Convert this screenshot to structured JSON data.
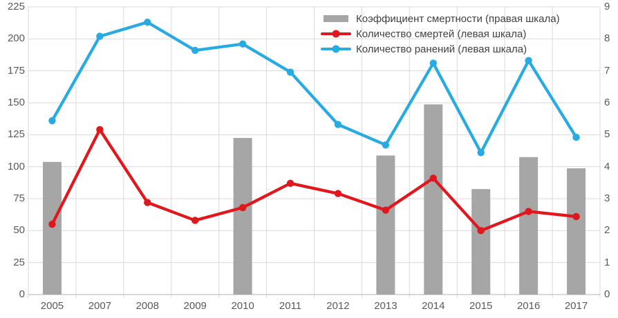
{
  "colors": {
    "bar": "#A6A6A6",
    "deaths_line": "#E0181E",
    "injuries_line": "#29ABE2",
    "grid": "#D9D9D9",
    "axis_line": "#BFBFBF",
    "axis_text": "#595959",
    "legend_text": "#404040",
    "background": "#FFFFFF"
  },
  "chart_data": {
    "type": "bar",
    "subtype": "combo-bar-line",
    "categories": [
      "2005",
      "2007",
      "2008",
      "2009",
      "2010",
      "2011",
      "2012",
      "2013",
      "2014",
      "2015",
      "2016",
      "2017"
    ],
    "series": [
      {
        "name": "Коэффициент смертности (правая шкала)",
        "type": "bar",
        "axis": "right",
        "color": "#A6A6A6",
        "values": [
          4.15,
          null,
          null,
          null,
          4.9,
          null,
          null,
          4.35,
          5.95,
          3.3,
          4.3,
          3.95
        ]
      },
      {
        "name": "Количество смертей (левая шкала)",
        "type": "line",
        "axis": "left",
        "color": "#E0181E",
        "values": [
          55,
          129,
          72,
          58,
          68,
          87,
          79,
          66,
          91,
          50,
          65,
          61
        ]
      },
      {
        "name": "Количество ранений (левая шкала)",
        "type": "line",
        "axis": "left",
        "color": "#29ABE2",
        "values": [
          136,
          202,
          213,
          191,
          196,
          174,
          133,
          117,
          181,
          111,
          183,
          123
        ]
      }
    ],
    "title": "",
    "xlabel": "",
    "ylabel": "",
    "left_axis": {
      "min": 0,
      "max": 225,
      "step": 25
    },
    "right_axis": {
      "min": 0,
      "max": 9,
      "step": 1
    },
    "grid": true,
    "legend_position": "top-center"
  }
}
